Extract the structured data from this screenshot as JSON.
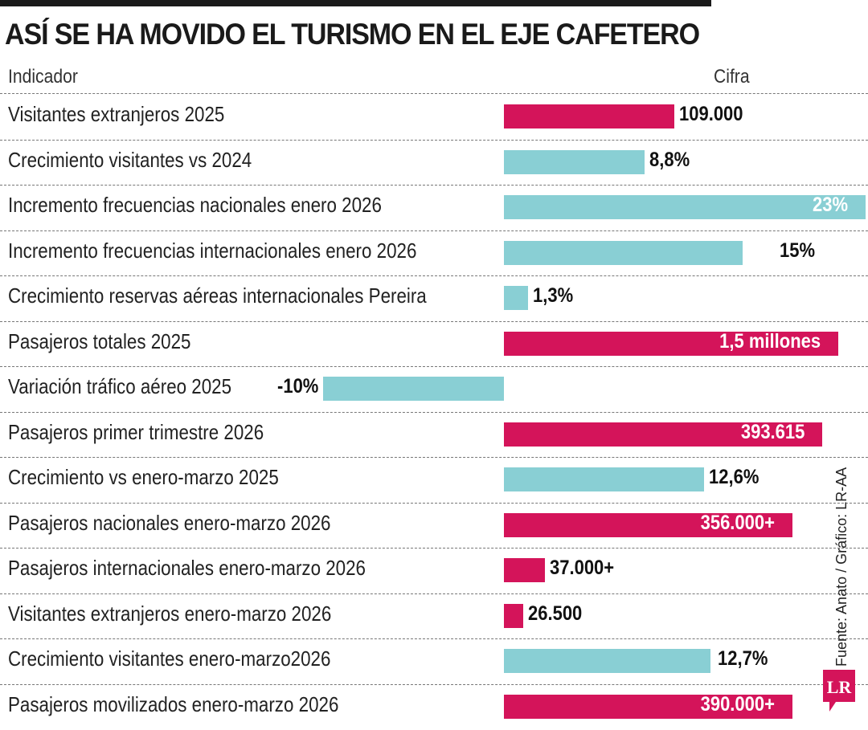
{
  "header": {
    "title": "ASÍ SE HA MOVIDO EL TURISMO EN EL EJE CAFETERO",
    "indicator_col": "Indicador",
    "value_col": "Cifra"
  },
  "source": "Fuente: Anato / Gráfico: LR-AA",
  "logo": {
    "text": "LR",
    "color": "#d4145a"
  },
  "colors": {
    "magenta": "#d4145a",
    "cyan": "#89cfd4"
  },
  "chart_data": {
    "type": "bar",
    "title": "ASÍ SE HA MOVIDO EL TURISMO EN EL EJE CAFETERO",
    "xlabel": "Cifra",
    "ylabel": "Indicador",
    "grid": false,
    "rows": [
      {
        "label": "Visitantes extranjeros 2025",
        "display": "109.000",
        "value": 109000,
        "fill": 0.47,
        "color": "magenta",
        "inside": false
      },
      {
        "label": "Crecimiento visitantes vs 2024",
        "display": "8,8%",
        "value": 8.8,
        "fill": 0.389,
        "color": "cyan",
        "inside": false
      },
      {
        "label": "Incremento frecuencias nacionales enero 2026",
        "display": "23%",
        "value": 23,
        "fill": 1.0,
        "color": "cyan",
        "inside": true
      },
      {
        "label": "Incremento frecuencias internacionales enero 2026",
        "display": "15%",
        "value": 15,
        "fill": 0.66,
        "color": "cyan",
        "inside": false,
        "label_x": 970
      },
      {
        "label": "Crecimiento reservas aéreas internacionales Pereira",
        "display": "1,3%",
        "value": 1.3,
        "fill": 0.067,
        "color": "cyan",
        "inside": false
      },
      {
        "label": "Pasajeros totales 2025",
        "display": "1,5 millones",
        "value": 1500000,
        "fill": 0.924,
        "color": "magenta",
        "inside": true
      },
      {
        "label": "Variación tráfico aéreo 2025",
        "display": "-10%",
        "value": -10,
        "fill": -0.5,
        "color": "cyan",
        "inside": false
      },
      {
        "label": "Pasajeros primer trimestre 2026",
        "display": "393.615",
        "value": 393615,
        "fill": 0.88,
        "color": "magenta",
        "inside": true
      },
      {
        "label": "Crecimiento vs enero-marzo 2025",
        "display": "12,6%",
        "value": 12.6,
        "fill": 0.553,
        "color": "cyan",
        "inside": false
      },
      {
        "label": "Pasajeros nacionales enero-marzo 2026",
        "display": "356.000+",
        "value": 356000,
        "fill": 0.798,
        "color": "magenta",
        "inside": true
      },
      {
        "label": "Pasajeros internacionales enero-marzo 2026",
        "display": "37.000+",
        "value": 37000,
        "fill": 0.113,
        "color": "magenta",
        "inside": false
      },
      {
        "label": "Visitantes extranjeros enero-marzo 2026",
        "display": "26.500",
        "value": 26500,
        "fill": 0.053,
        "color": "magenta",
        "inside": false
      },
      {
        "label": "Crecimiento visitantes enero-marzo2026",
        "display": "12,7%",
        "value": 12.7,
        "fill": 0.571,
        "color": "cyan",
        "inside": false,
        "label_x": 893
      },
      {
        "label": "Pasajeros movilizados enero-marzo 2026",
        "display": "390.000+",
        "value": 390000,
        "fill": 0.798,
        "color": "magenta",
        "inside": true
      }
    ]
  }
}
